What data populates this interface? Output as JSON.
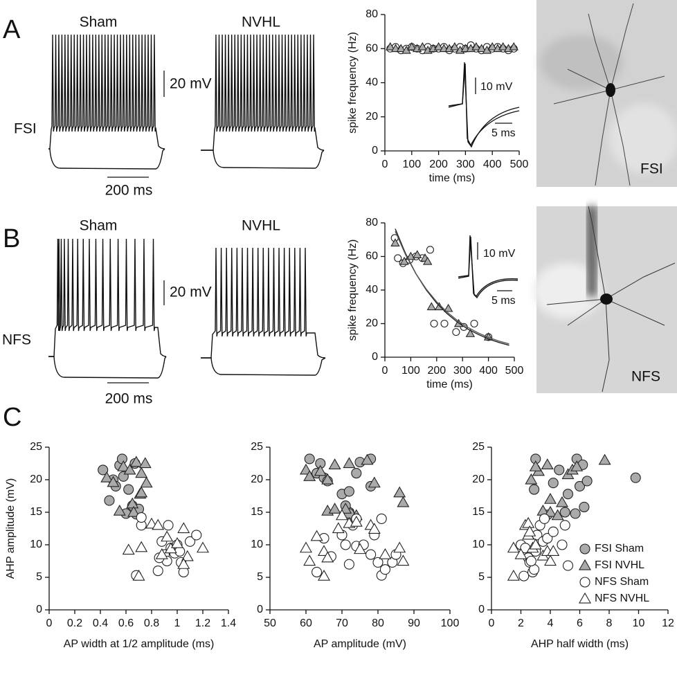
{
  "figure": {
    "panel_labels": [
      "A",
      "B",
      "C"
    ],
    "A": {
      "groups": [
        "Sham",
        "NVHL"
      ],
      "cell": "FSI",
      "v_scale": "20 mV",
      "t_scale": "200 ms",
      "inset_v": "10 mV",
      "inset_t": "5 ms",
      "image_label": "FSI"
    },
    "B": {
      "groups": [
        "Sham",
        "NVHL"
      ],
      "cell": "NFS",
      "v_scale": "20 mV",
      "t_scale": "200 ms",
      "inset_v": "10 mV",
      "inset_t": "5 ms",
      "image_label": "NFS"
    }
  },
  "chart_data": [
    {
      "type": "scatter",
      "xlabel": "time (ms)",
      "ylabel": "spike frequency (Hz)",
      "xlim": [
        0,
        500
      ],
      "ylim": [
        0,
        80
      ],
      "xticks": [
        0,
        100,
        200,
        300,
        400,
        500
      ],
      "yticks": [
        0,
        20,
        40,
        60,
        80
      ],
      "series": [
        {
          "marker": "circle",
          "color": "#ffffff",
          "x": [
            20,
            40,
            60,
            80,
            100,
            120,
            140,
            160,
            180,
            200,
            220,
            240,
            260,
            280,
            300,
            320,
            340,
            360,
            380,
            400,
            420,
            440,
            460,
            480
          ],
          "values": [
            60,
            61,
            59,
            60,
            61,
            60,
            59,
            61,
            60,
            60,
            61,
            59,
            60,
            61,
            60,
            62,
            60,
            59,
            61,
            60,
            61,
            60,
            59,
            60
          ]
        },
        {
          "marker": "triangle",
          "color": "#aaaaaa",
          "x": [
            20,
            40,
            60,
            80,
            100,
            120,
            140,
            160,
            180,
            200,
            220,
            240,
            260,
            280,
            300,
            320,
            340,
            360,
            380,
            400,
            420,
            440,
            460,
            480
          ],
          "values": [
            61,
            60,
            60,
            59,
            61,
            60,
            61,
            59,
            60,
            61,
            60,
            60,
            61,
            59,
            60,
            60,
            61,
            60,
            59,
            61,
            60,
            61,
            60,
            61
          ]
        }
      ]
    },
    {
      "type": "scatter",
      "xlabel": "time (ms)",
      "ylabel": "spike frequency (Hz)",
      "xlim": [
        0,
        500
      ],
      "ylim": [
        0,
        80
      ],
      "xticks": [
        0,
        100,
        200,
        300,
        400,
        500
      ],
      "yticks": [
        0,
        20,
        40,
        60,
        80
      ],
      "series": [
        {
          "marker": "circle",
          "color": "#ffffff",
          "x": [
            38,
            50,
            70,
            95,
            120,
            145,
            175,
            190,
            230,
            275,
            305,
            345,
            400
          ],
          "values": [
            71,
            59,
            56,
            58,
            60,
            59,
            64,
            20,
            20,
            15,
            18,
            20,
            12
          ]
        },
        {
          "marker": "triangle",
          "color": "#aaaaaa",
          "x": [
            40,
            75,
            100,
            125,
            155,
            165,
            180,
            210,
            245,
            285,
            330,
            400
          ],
          "values": [
            68,
            57,
            60,
            61,
            59,
            57,
            30,
            30,
            29,
            20,
            14,
            12
          ]
        },
        {
          "marker": "line",
          "color": "#222222",
          "x": [
            40,
            80,
            120,
            160,
            200,
            240,
            280,
            320,
            360,
            400,
            440,
            480
          ],
          "values": [
            76.5,
            61.7,
            49.7,
            40.0,
            32.2,
            26.0,
            20.9,
            16.8,
            13.6,
            10.9,
            8.8,
            7.1
          ]
        },
        {
          "marker": "line",
          "color": "#555555",
          "x": [
            40,
            80,
            120,
            160,
            200,
            240,
            280,
            320,
            360,
            400,
            440,
            480
          ],
          "values": [
            75.0,
            61.0,
            49.7,
            40.5,
            33.0,
            26.9,
            21.9,
            17.8,
            14.5,
            11.8,
            9.6,
            7.9
          ]
        }
      ]
    },
    {
      "type": "scatter",
      "xlabel": "AP width at 1/2 amplitude (ms)",
      "ylabel": "AHP amplitude (mV)",
      "xlim": [
        0,
        1.4
      ],
      "ylim": [
        0,
        25
      ],
      "xticks": [
        0,
        0.2,
        0.4,
        0.6,
        0.8,
        1,
        1.2,
        1.4
      ],
      "yticks": [
        0,
        5,
        10,
        15,
        20,
        25
      ],
      "series": [
        {
          "marker": "circle",
          "color": "#aaaaaa",
          "x": [
            0.42,
            0.47,
            0.5,
            0.52,
            0.55,
            0.57,
            0.58,
            0.62,
            0.65,
            0.68,
            0.7,
            0.67,
            0.6
          ],
          "values": [
            21.5,
            16.8,
            20,
            19,
            22.2,
            23.2,
            20.5,
            18.5,
            16,
            14.7,
            15.5,
            22.5,
            14.8
          ]
        },
        {
          "marker": "triangle",
          "color": "#aaaaaa",
          "x": [
            0.45,
            0.5,
            0.55,
            0.58,
            0.63,
            0.65,
            0.68,
            0.71,
            0.72,
            0.75,
            0.76,
            0.66,
            0.72
          ],
          "values": [
            20.3,
            19.6,
            15.2,
            22,
            21.5,
            16.3,
            22.7,
            17.8,
            21,
            22.5,
            19.5,
            15,
            18
          ]
        },
        {
          "marker": "circle",
          "color": "#ffffff",
          "x": [
            0.68,
            0.72,
            0.72,
            0.85,
            0.88,
            0.9,
            0.92,
            0.93,
            0.95,
            0.98,
            1.0,
            1.02,
            1.03,
            1.05,
            1.1,
            1.15,
            0.86
          ],
          "values": [
            5.3,
            13,
            14.2,
            6,
            10.5,
            8.5,
            7.5,
            13,
            9.5,
            8.7,
            10,
            9,
            7.3,
            5.8,
            10.5,
            11.5,
            8
          ]
        },
        {
          "marker": "triangle",
          "color": "#ffffff",
          "x": [
            0.62,
            0.7,
            0.72,
            0.8,
            0.85,
            0.88,
            0.92,
            0.95,
            1.0,
            1.05,
            1.08,
            1.2,
            1.05
          ],
          "values": [
            9.2,
            5.2,
            9.6,
            13.2,
            13,
            8.5,
            11.2,
            9.4,
            10.2,
            12.5,
            8.2,
            9.5,
            7
          ]
        }
      ]
    },
    {
      "type": "scatter",
      "xlabel": "AP amplitude (mV)",
      "xlim": [
        50,
        100
      ],
      "ylim": [
        0,
        25
      ],
      "xticks": [
        50,
        60,
        70,
        80,
        90,
        100
      ],
      "yticks": [
        0,
        5,
        10,
        15,
        20,
        25
      ],
      "series": [
        {
          "marker": "circle",
          "color": "#aaaaaa",
          "x": [
            61,
            63,
            64,
            65,
            66,
            70,
            72,
            72,
            74,
            75,
            78,
            78,
            72,
            71
          ],
          "values": [
            23.2,
            21,
            22.5,
            20.3,
            19.8,
            17.8,
            15,
            18.2,
            21,
            22.7,
            23.2,
            19,
            14.8,
            16
          ]
        },
        {
          "marker": "triangle",
          "color": "#aaaaaa",
          "x": [
            60,
            61,
            64,
            66,
            68,
            68,
            71,
            72,
            74,
            77,
            79,
            86,
            87,
            66
          ],
          "values": [
            21.5,
            20.5,
            21.3,
            15.2,
            15.5,
            22.3,
            15.5,
            22.5,
            14.5,
            23,
            19.5,
            18,
            16.5,
            20
          ]
        },
        {
          "marker": "circle",
          "color": "#ffffff",
          "x": [
            63,
            65,
            67,
            70,
            71,
            72,
            73,
            74,
            74,
            76,
            78,
            79,
            80,
            81,
            81,
            82,
            84,
            85
          ],
          "values": [
            5.8,
            11,
            8.2,
            11.5,
            10,
            7,
            13,
            14,
            9.8,
            10,
            8.5,
            11.5,
            7.3,
            14,
            5.3,
            6.2,
            7.3,
            8.5
          ]
        },
        {
          "marker": "triangle",
          "color": "#ffffff",
          "x": [
            60,
            61,
            63,
            65,
            65,
            66,
            69,
            70,
            72,
            74,
            75,
            78,
            79,
            86,
            87,
            82
          ],
          "values": [
            9.5,
            7.5,
            11.3,
            5.2,
            9,
            8,
            12.5,
            14.5,
            13.3,
            13.5,
            9.3,
            13,
            12.4,
            9.5,
            7.5,
            8.5
          ]
        }
      ]
    },
    {
      "type": "scatter",
      "xlabel": "AHP half width (ms)",
      "xlim": [
        0,
        12
      ],
      "ylim": [
        0,
        25
      ],
      "xticks": [
        0,
        2,
        4,
        6,
        8,
        10,
        12
      ],
      "yticks": [
        0,
        5,
        10,
        15,
        20,
        25
      ],
      "legend": "lower right",
      "series": [
        {
          "name": "FSI Sham",
          "marker": "circle",
          "color": "#aaaaaa",
          "x": [
            3,
            2.9,
            4.2,
            4.6,
            5,
            5.2,
            5.7,
            5.8,
            6,
            6.2,
            6.5,
            6.3,
            9.8,
            3.8
          ],
          "values": [
            23.2,
            18.5,
            19.5,
            21.5,
            15,
            17.8,
            14.8,
            23.2,
            19,
            22.3,
            19.8,
            15.8,
            20.3,
            14.6
          ]
        },
        {
          "name": "FSI NVHL",
          "marker": "triangle",
          "color": "#aaaaaa",
          "x": [
            2.7,
            3.2,
            3.5,
            3.8,
            4,
            4,
            4.5,
            4.8,
            5.2,
            5.5,
            5.8,
            7.7,
            3
          ],
          "values": [
            20,
            21.3,
            15.2,
            22.3,
            17,
            15,
            14.5,
            16.5,
            20.8,
            21.5,
            22,
            23,
            22
          ]
        },
        {
          "name": "NFS Sham",
          "marker": "circle",
          "color": "#ffffff",
          "x": [
            2,
            2.2,
            2.3,
            2.5,
            2.6,
            2.8,
            2.9,
            3,
            3.1,
            3.5,
            3.3,
            3.8,
            4.2,
            4.8,
            5,
            5.2,
            3.6,
            2.7
          ],
          "values": [
            10,
            5.2,
            9.5,
            8,
            7.3,
            5.8,
            6.2,
            9,
            11.5,
            10.5,
            13,
            11,
            12,
            10,
            13,
            6.8,
            14,
            7.5
          ]
        },
        {
          "name": "NFS NVHL",
          "marker": "triangle",
          "color": "#ffffff",
          "x": [
            1.5,
            1.5,
            2,
            2.3,
            2.5,
            2.5,
            2.8,
            3,
            3.5,
            3.8,
            4,
            4.2,
            2.6
          ],
          "values": [
            5.2,
            9.5,
            8.5,
            13,
            13.3,
            11.5,
            9.5,
            10,
            8.3,
            9,
            7.5,
            9,
            12
          ]
        }
      ]
    }
  ]
}
